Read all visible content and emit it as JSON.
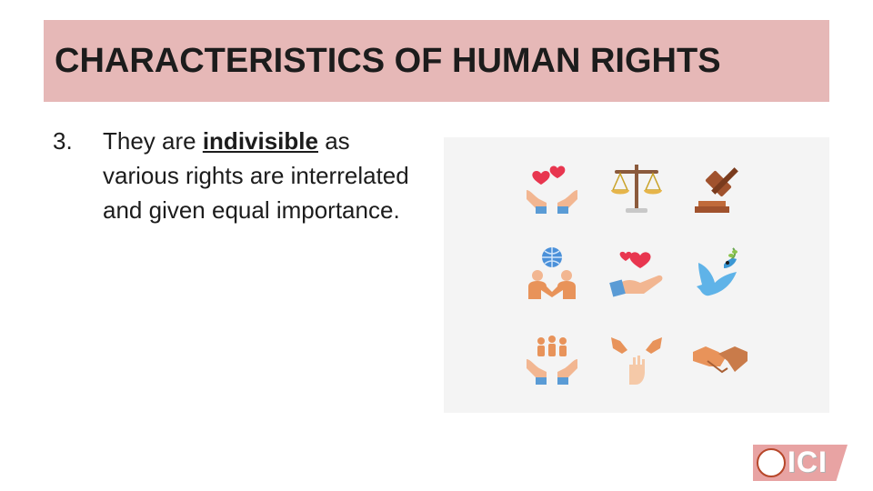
{
  "slide": {
    "title": "CHARACTERISTICS OF HUMAN RIGHTS",
    "point": {
      "number": "3.",
      "text_before": "They are ",
      "emphasis": "indivisible",
      "text_after": " as various rights are interrelated and given equal importance."
    }
  },
  "icons": [
    "hands-holding-hearts-icon",
    "scales-of-justice-icon",
    "gavel-icon",
    "people-globe-icon",
    "hand-offering-heart-icon",
    "dove-olive-branch-icon",
    "hands-holding-people-icon",
    "raised-hands-icon",
    "handshake-icon"
  ],
  "logo": {
    "text": "ICI",
    "name": "ici-logo"
  },
  "colors": {
    "title_band": "#e6b8b7",
    "text": "#1c1c1c",
    "panel": "#f4f4f4",
    "heart": "#e8364f",
    "skin": "#f2b691",
    "sleeve": "#5a9bd5",
    "wood": "#a0522d"
  }
}
